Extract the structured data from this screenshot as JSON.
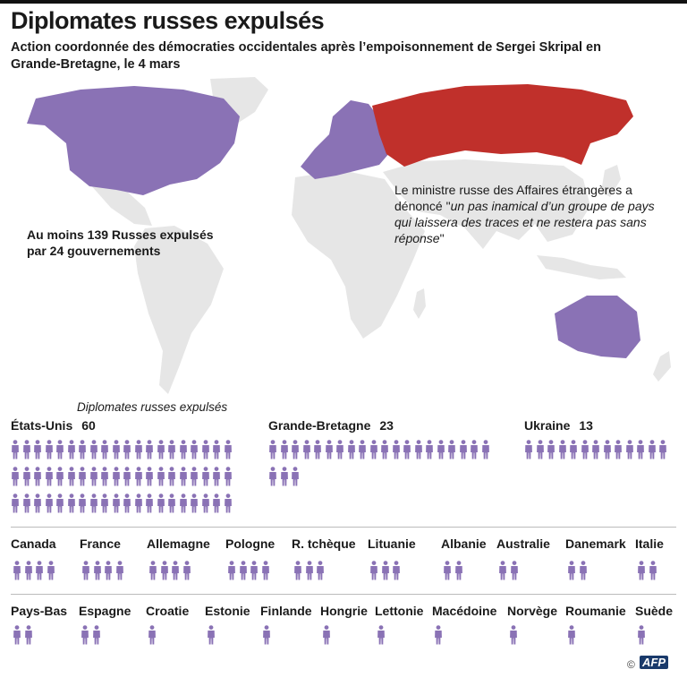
{
  "title": "Diplomates russes expulsés",
  "subtitle": "Action coordonnée des démocraties occidentales après l’empoisonnement de Sergei Skripal en Grande-Bretagne, le 4 mars",
  "map": {
    "note_left": "Au moins 139 Russes expulsés par 24 gouvernements",
    "note_right_prefix": "Le ministre russe des Affaires étrangères a dénoncé \"",
    "note_right_quote": "un pas inamical d’un groupe de pays qui laissera des traces et ne restera pas sans réponse",
    "note_right_suffix": "\"",
    "colors": {
      "land": "#e6e6e6",
      "expelling": "#8a72b5",
      "russia": "#c0302b"
    }
  },
  "legend_title": "Diplomates russes expulsés",
  "colors": {
    "figure": "#8a72b5",
    "separator": "#bbbbbb"
  },
  "icon": "person-icon",
  "chart_data": {
    "type": "pictogram",
    "categories": [
      "États-Unis",
      "Grande-Bretagne",
      "Ukraine",
      "Canada",
      "France",
      "Allemagne",
      "Pologne",
      "R. tchèque",
      "Lituanie",
      "Albanie",
      "Australie",
      "Danemark",
      "Italie",
      "Pays-Bas",
      "Espagne",
      "Croatie",
      "Estonie",
      "Finlande",
      "Hongrie",
      "Lettonie",
      "Macédoine",
      "Norvège",
      "Roumanie",
      "Suède"
    ],
    "values": [
      60,
      23,
      13,
      4,
      4,
      4,
      4,
      3,
      3,
      2,
      2,
      2,
      2,
      2,
      2,
      1,
      1,
      1,
      1,
      1,
      1,
      1,
      1,
      1
    ],
    "labelled_values": [
      60,
      23,
      13
    ]
  },
  "footer": {
    "copyright": "©",
    "brand": "AFP"
  }
}
